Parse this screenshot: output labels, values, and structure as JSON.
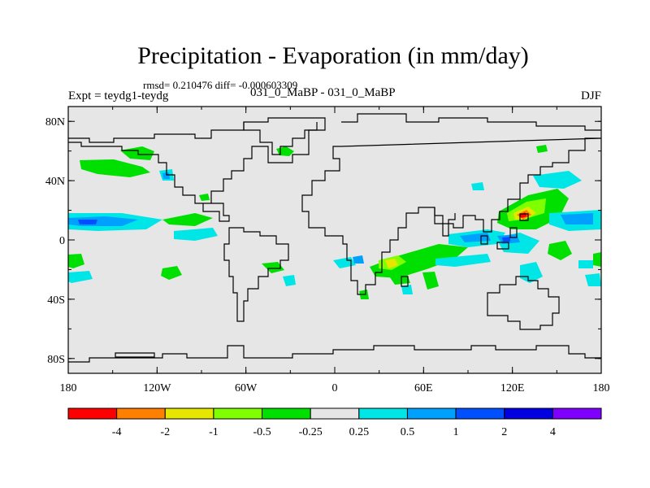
{
  "title": "Precipitation - Evaporation (in mm/day)",
  "stats_line": "rmsd= 0.210476 diff= -0.000603309",
  "experiment_label": "Expt = teydg1-teydg",
  "case_label": "031_0_MaBP - 031_0_MaBP",
  "season_label": "DJF",
  "map": {
    "lat_labels": [
      "80N",
      "40N",
      "0",
      "40S",
      "80S"
    ],
    "lon_labels": [
      "180",
      "120W",
      "60W",
      "0",
      "60E",
      "120E",
      "180"
    ],
    "ocean_color": "#e6e6e6",
    "coast_color": "#000000"
  },
  "colorbar": {
    "colors": [
      "#ff0000",
      "#ff8000",
      "#e6e600",
      "#80ff00",
      "#00e000",
      "#e6e6e6",
      "#00e6e6",
      "#00a0ff",
      "#0050ff",
      "#0000e0",
      "#8000ff"
    ],
    "labels": [
      "-4",
      "-2",
      "-1",
      "-0.5",
      "-0.25",
      "0.25",
      "0.5",
      "1",
      "2",
      "4"
    ]
  }
}
